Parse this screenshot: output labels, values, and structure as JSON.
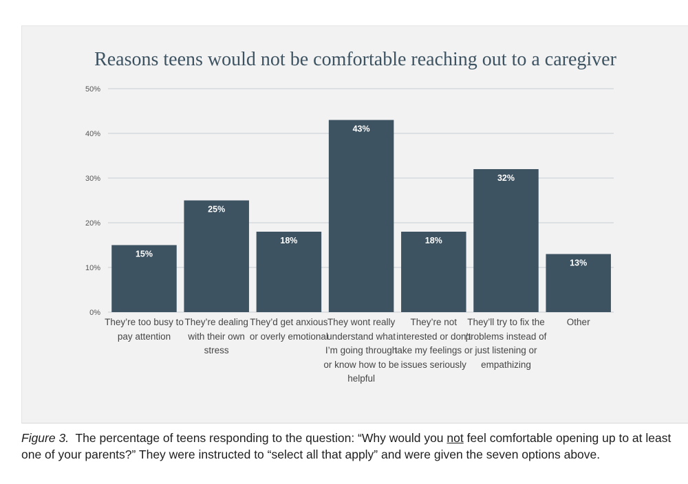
{
  "chart_data": {
    "type": "bar",
    "title": "Reasons teens would not be comfortable reaching out to a caregiver",
    "categories": [
      "They’re too busy to pay attention",
      "They’re dealing with their own stress",
      "They’d get anxious or overly emotional",
      "They wont really understand what I’m going through or know how to be helpful",
      "They’re not interested or don’t take my feelings or issues seriously",
      "They’ll try to fix the problems instead of just listening or empathizing",
      "Other"
    ],
    "values": [
      15,
      25,
      18,
      43,
      18,
      32,
      13
    ],
    "value_labels": [
      "15%",
      "25%",
      "18%",
      "43%",
      "18%",
      "32%",
      "13%"
    ],
    "y_ticks": [
      0,
      10,
      20,
      30,
      40,
      50
    ],
    "y_tick_labels": [
      "0%",
      "10%",
      "20%",
      "30%",
      "40%",
      "50%"
    ],
    "ylim": [
      0,
      50
    ],
    "xlabel": "",
    "ylabel": "",
    "grid": true,
    "legend": "none",
    "colors": {
      "bar": "#3d5362",
      "grid": "#c5cdd4",
      "bar_label": "#ffffff",
      "tick": "#555555"
    }
  },
  "caption": {
    "figure_label": "Figure 3.",
    "text_before": "The percentage of teens responding to the question: “Why would you",
    "underlined": "not",
    "text_after": "feel comfortable opening up to at least one of your parents?” They were instructed to “select all that apply” and were given the seven options above."
  }
}
